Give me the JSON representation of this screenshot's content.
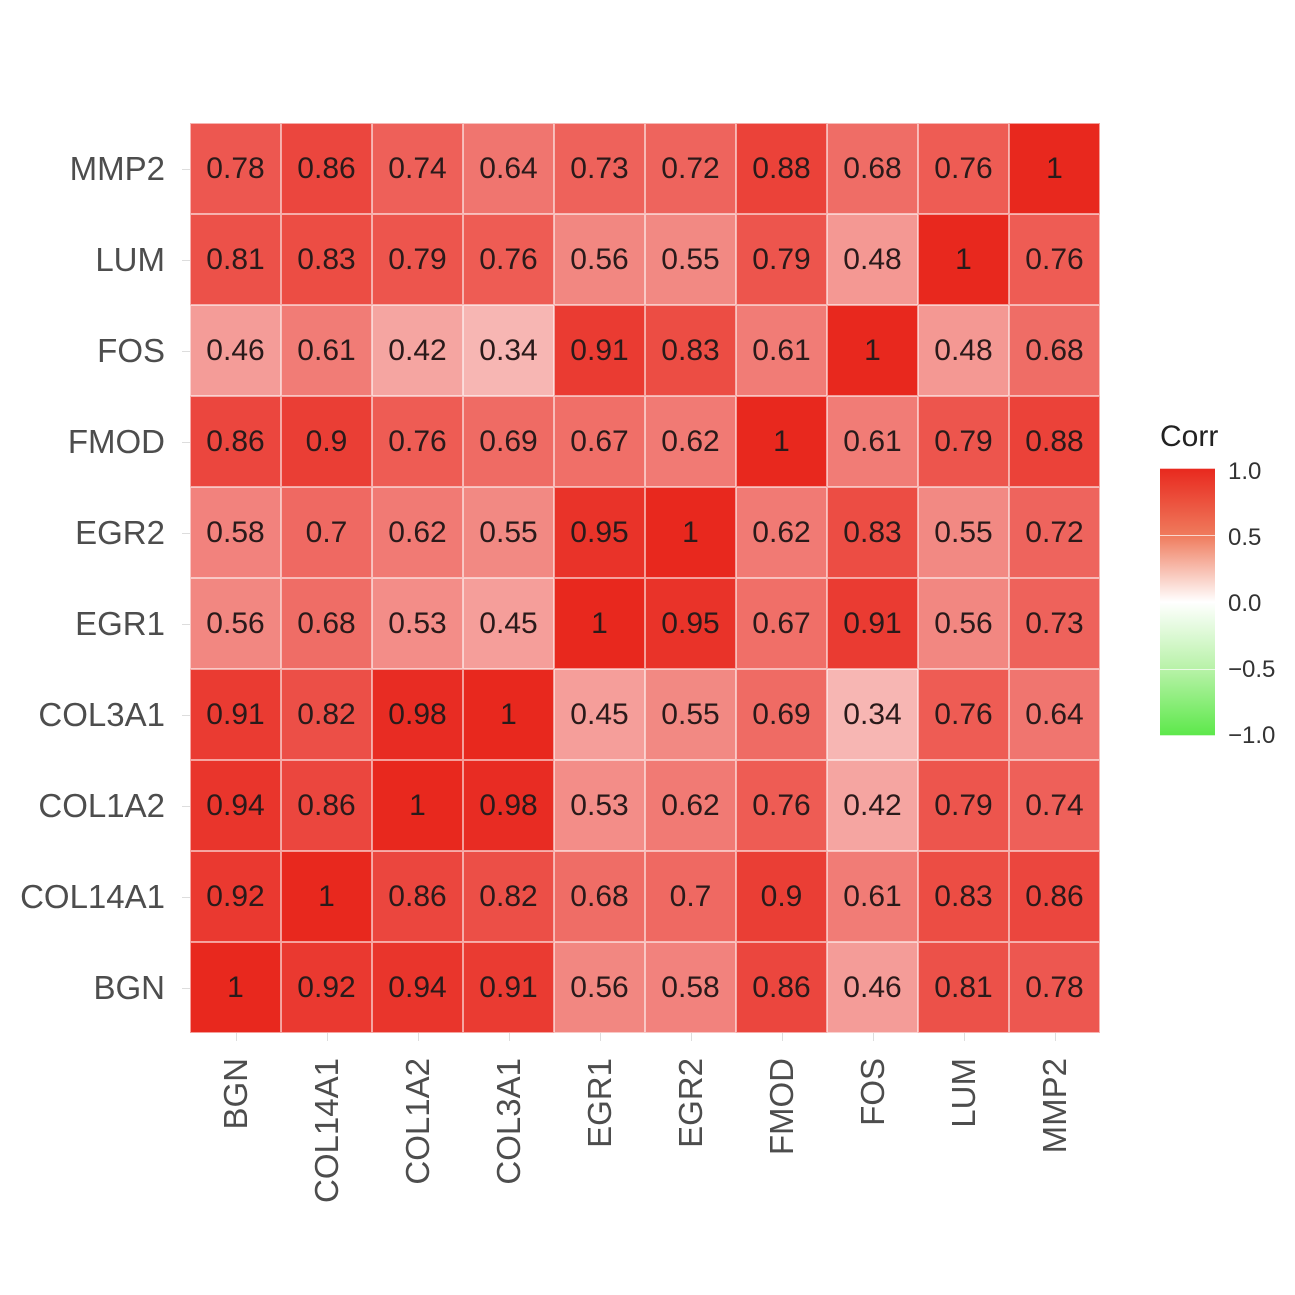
{
  "chart_data": {
    "type": "heatmap",
    "title": "",
    "xlabel": "",
    "ylabel": "",
    "x_categories": [
      "BGN",
      "COL14A1",
      "COL1A2",
      "COL3A1",
      "EGR1",
      "EGR2",
      "FMOD",
      "FOS",
      "LUM",
      "MMP2"
    ],
    "y_categories_top_to_bottom": [
      "MMP2",
      "LUM",
      "FOS",
      "FMOD",
      "EGR2",
      "EGR1",
      "COL3A1",
      "COL1A2",
      "COL14A1",
      "BGN"
    ],
    "values_top_to_bottom": [
      [
        0.78,
        0.86,
        0.74,
        0.64,
        0.73,
        0.72,
        0.88,
        0.68,
        0.76,
        1
      ],
      [
        0.81,
        0.83,
        0.79,
        0.76,
        0.56,
        0.55,
        0.79,
        0.48,
        1,
        0.76
      ],
      [
        0.46,
        0.61,
        0.42,
        0.34,
        0.91,
        0.83,
        0.61,
        1,
        0.48,
        0.68
      ],
      [
        0.86,
        0.9,
        0.76,
        0.69,
        0.67,
        0.62,
        1,
        0.61,
        0.79,
        0.88
      ],
      [
        0.58,
        0.7,
        0.62,
        0.55,
        0.95,
        1,
        0.62,
        0.83,
        0.55,
        0.72
      ],
      [
        0.56,
        0.68,
        0.53,
        0.45,
        1,
        0.95,
        0.67,
        0.91,
        0.56,
        0.73
      ],
      [
        0.91,
        0.82,
        0.98,
        1,
        0.45,
        0.55,
        0.69,
        0.34,
        0.76,
        0.64
      ],
      [
        0.94,
        0.86,
        1,
        0.98,
        0.53,
        0.62,
        0.76,
        0.42,
        0.79,
        0.74
      ],
      [
        0.92,
        1,
        0.86,
        0.82,
        0.68,
        0.7,
        0.9,
        0.61,
        0.83,
        0.86
      ],
      [
        1,
        0.92,
        0.94,
        0.91,
        0.56,
        0.58,
        0.86,
        0.46,
        0.81,
        0.78
      ]
    ],
    "value_labels": "shown in cells",
    "legend": {
      "title": "Corr",
      "ticks": [
        "1.0",
        "0.5",
        "0.0",
        "−0.5",
        "−1.0"
      ],
      "range": [
        -1,
        1
      ],
      "position": "right",
      "colors": {
        "high": "#e8281e",
        "mid": "#ffffff",
        "low": "#5ce84a"
      }
    },
    "grid": false
  }
}
